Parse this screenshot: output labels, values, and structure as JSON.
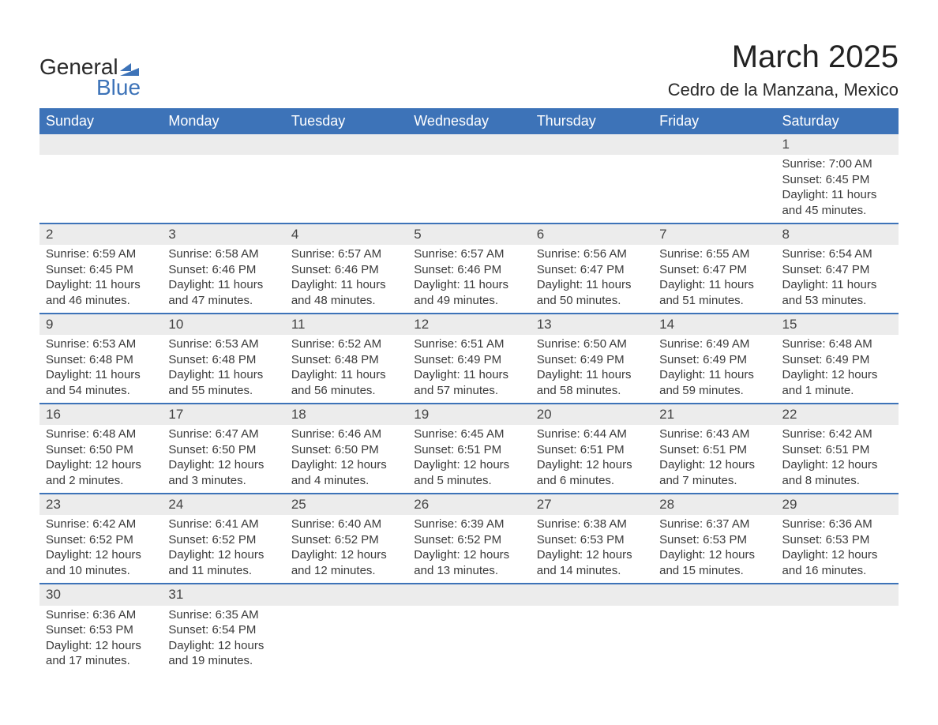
{
  "logo": {
    "word1": "General",
    "word2": "Blue",
    "accent_color": "#3d73b8"
  },
  "title": "March 2025",
  "location": "Cedro de la Manzana, Mexico",
  "calendar": {
    "header_bg": "#3d73b8",
    "header_fg": "#ffffff",
    "daynum_bg": "#ececec",
    "rule_color": "#3d73b8",
    "text_color": "#3a3a3a",
    "fontsize_header": 18,
    "fontsize_daynum": 17,
    "fontsize_detail": 15,
    "columns": [
      "Sunday",
      "Monday",
      "Tuesday",
      "Wednesday",
      "Thursday",
      "Friday",
      "Saturday"
    ],
    "weeks": [
      [
        null,
        null,
        null,
        null,
        null,
        null,
        {
          "n": "1",
          "sunrise": "7:00 AM",
          "sunset": "6:45 PM",
          "daylight": "11 hours and 45 minutes."
        }
      ],
      [
        {
          "n": "2",
          "sunrise": "6:59 AM",
          "sunset": "6:45 PM",
          "daylight": "11 hours and 46 minutes."
        },
        {
          "n": "3",
          "sunrise": "6:58 AM",
          "sunset": "6:46 PM",
          "daylight": "11 hours and 47 minutes."
        },
        {
          "n": "4",
          "sunrise": "6:57 AM",
          "sunset": "6:46 PM",
          "daylight": "11 hours and 48 minutes."
        },
        {
          "n": "5",
          "sunrise": "6:57 AM",
          "sunset": "6:46 PM",
          "daylight": "11 hours and 49 minutes."
        },
        {
          "n": "6",
          "sunrise": "6:56 AM",
          "sunset": "6:47 PM",
          "daylight": "11 hours and 50 minutes."
        },
        {
          "n": "7",
          "sunrise": "6:55 AM",
          "sunset": "6:47 PM",
          "daylight": "11 hours and 51 minutes."
        },
        {
          "n": "8",
          "sunrise": "6:54 AM",
          "sunset": "6:47 PM",
          "daylight": "11 hours and 53 minutes."
        }
      ],
      [
        {
          "n": "9",
          "sunrise": "6:53 AM",
          "sunset": "6:48 PM",
          "daylight": "11 hours and 54 minutes."
        },
        {
          "n": "10",
          "sunrise": "6:53 AM",
          "sunset": "6:48 PM",
          "daylight": "11 hours and 55 minutes."
        },
        {
          "n": "11",
          "sunrise": "6:52 AM",
          "sunset": "6:48 PM",
          "daylight": "11 hours and 56 minutes."
        },
        {
          "n": "12",
          "sunrise": "6:51 AM",
          "sunset": "6:49 PM",
          "daylight": "11 hours and 57 minutes."
        },
        {
          "n": "13",
          "sunrise": "6:50 AM",
          "sunset": "6:49 PM",
          "daylight": "11 hours and 58 minutes."
        },
        {
          "n": "14",
          "sunrise": "6:49 AM",
          "sunset": "6:49 PM",
          "daylight": "11 hours and 59 minutes."
        },
        {
          "n": "15",
          "sunrise": "6:48 AM",
          "sunset": "6:49 PM",
          "daylight": "12 hours and 1 minute."
        }
      ],
      [
        {
          "n": "16",
          "sunrise": "6:48 AM",
          "sunset": "6:50 PM",
          "daylight": "12 hours and 2 minutes."
        },
        {
          "n": "17",
          "sunrise": "6:47 AM",
          "sunset": "6:50 PM",
          "daylight": "12 hours and 3 minutes."
        },
        {
          "n": "18",
          "sunrise": "6:46 AM",
          "sunset": "6:50 PM",
          "daylight": "12 hours and 4 minutes."
        },
        {
          "n": "19",
          "sunrise": "6:45 AM",
          "sunset": "6:51 PM",
          "daylight": "12 hours and 5 minutes."
        },
        {
          "n": "20",
          "sunrise": "6:44 AM",
          "sunset": "6:51 PM",
          "daylight": "12 hours and 6 minutes."
        },
        {
          "n": "21",
          "sunrise": "6:43 AM",
          "sunset": "6:51 PM",
          "daylight": "12 hours and 7 minutes."
        },
        {
          "n": "22",
          "sunrise": "6:42 AM",
          "sunset": "6:51 PM",
          "daylight": "12 hours and 8 minutes."
        }
      ],
      [
        {
          "n": "23",
          "sunrise": "6:42 AM",
          "sunset": "6:52 PM",
          "daylight": "12 hours and 10 minutes."
        },
        {
          "n": "24",
          "sunrise": "6:41 AM",
          "sunset": "6:52 PM",
          "daylight": "12 hours and 11 minutes."
        },
        {
          "n": "25",
          "sunrise": "6:40 AM",
          "sunset": "6:52 PM",
          "daylight": "12 hours and 12 minutes."
        },
        {
          "n": "26",
          "sunrise": "6:39 AM",
          "sunset": "6:52 PM",
          "daylight": "12 hours and 13 minutes."
        },
        {
          "n": "27",
          "sunrise": "6:38 AM",
          "sunset": "6:53 PM",
          "daylight": "12 hours and 14 minutes."
        },
        {
          "n": "28",
          "sunrise": "6:37 AM",
          "sunset": "6:53 PM",
          "daylight": "12 hours and 15 minutes."
        },
        {
          "n": "29",
          "sunrise": "6:36 AM",
          "sunset": "6:53 PM",
          "daylight": "12 hours and 16 minutes."
        }
      ],
      [
        {
          "n": "30",
          "sunrise": "6:36 AM",
          "sunset": "6:53 PM",
          "daylight": "12 hours and 17 minutes."
        },
        {
          "n": "31",
          "sunrise": "6:35 AM",
          "sunset": "6:54 PM",
          "daylight": "12 hours and 19 minutes."
        },
        null,
        null,
        null,
        null,
        null
      ]
    ],
    "labels": {
      "sunrise": "Sunrise: ",
      "sunset": "Sunset: ",
      "daylight": "Daylight: "
    }
  }
}
